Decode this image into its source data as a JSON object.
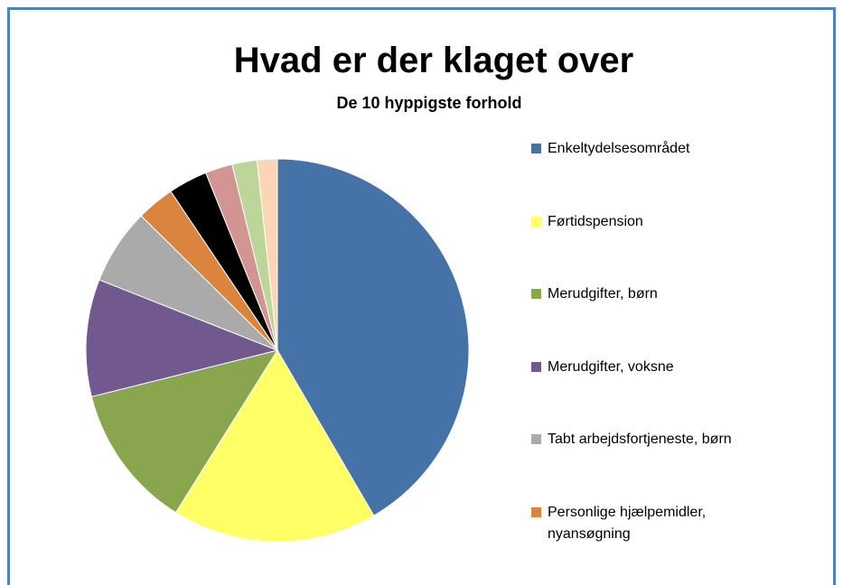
{
  "chart_data": {
    "type": "pie",
    "title": "Hvad er der klaget over",
    "subtitle": "De 10 hyppigste forhold",
    "categories": [
      "Enkeltydelsesområdet",
      "Førtidspension",
      "Merudgifter, børn",
      "Merudgifter, voksne",
      "Tabt arbejdsfortjeneste, børn",
      "Personlige hjælpemidler, nyansøgning",
      null,
      null,
      null,
      null
    ],
    "values": [
      41.6,
      17.3,
      12.2,
      9.9,
      6.4,
      3.2,
      3.3,
      2.3,
      2.1,
      1.7
    ],
    "colors": [
      "#4572a7",
      "#ffff66",
      "#89a54e",
      "#71588f",
      "#aaaaaa",
      "#db843d",
      "#000000",
      "#d39494",
      "#bcd69a",
      "#fcd5b4"
    ],
    "legend": "right"
  }
}
